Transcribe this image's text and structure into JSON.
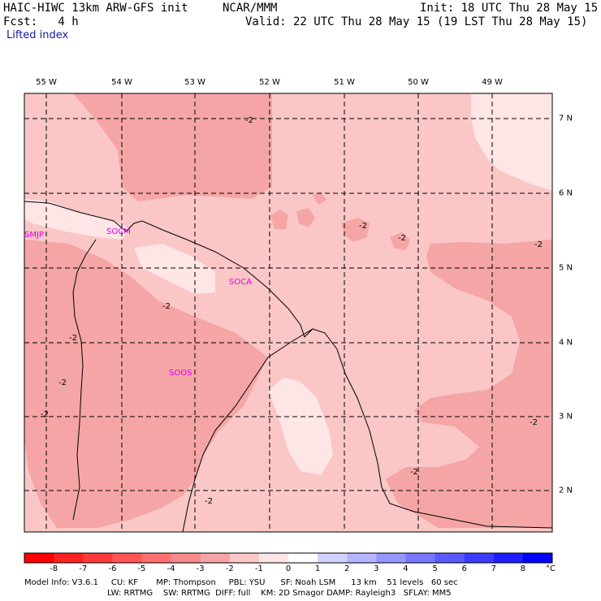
{
  "header": {
    "model": "HAIC-HIWC 13km ARW-GFS init",
    "org": "NCAR/MMM",
    "init": "Init: 18 UTC Thu 28 May 15",
    "fcst": "Fcst:   4 h",
    "valid": "Valid: 22 UTC Thu 28 May 15 (19 LST Thu 28 May 15)",
    "field": "Lifted index"
  },
  "map": {
    "lon_labels": [
      "55 W",
      "54 W",
      "53 W",
      "52 W",
      "51 W",
      "50 W",
      "49 W"
    ],
    "lat_labels": [
      "7 N",
      "6 N",
      "5 N",
      "4 N",
      "3 N",
      "2 N"
    ],
    "stations": [
      "SMJP",
      "SOCM",
      "SOCA",
      "SOOS"
    ],
    "contour_label": "-2"
  },
  "colorbar": {
    "ticks": [
      "-8",
      "-7",
      "-6",
      "-5",
      "-4",
      "-3",
      "-2",
      "-1",
      "0",
      "1",
      "2",
      "3",
      "4",
      "5",
      "6",
      "7",
      "8"
    ],
    "unit": "°C",
    "colors": [
      "#ff0000",
      "#ff2020",
      "#ff3a3a",
      "#ff5555",
      "#ff7070",
      "#f48a8a",
      "#f5a5a5",
      "#fac6c6",
      "#ffe6e6",
      "#ffffff",
      "#d2d2ff",
      "#b4b4ff",
      "#9696ff",
      "#7878ff",
      "#5a5aff",
      "#3c3cff",
      "#1e1eff",
      "#0000ff"
    ]
  },
  "info": {
    "line1": "Model Info: V3.6.1     CU: KF       MP: Thompson     PBL: YSU      SF: Noah LSM      13 km    51 levels   60 sec",
    "line2": "LW: RRTMG    SW: RRTMG  DIFF: full    KM: 2D Smagor DAMP: Rayleigh3   SFLAY: MM5"
  }
}
